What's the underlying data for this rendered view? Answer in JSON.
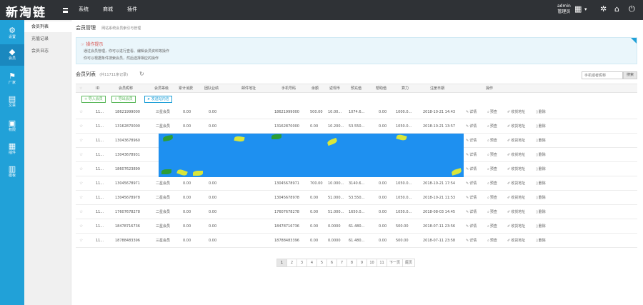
{
  "app": {
    "logo": "新淘链"
  },
  "topnav": [
    "系统",
    "商城",
    "插件"
  ],
  "admin": {
    "name": "admin",
    "role": "管理员"
  },
  "leftnav": [
    {
      "label": "设置",
      "icon": "gear-icon",
      "glyph": "⚙"
    },
    {
      "label": "会员",
      "icon": "diamond-icon",
      "glyph": "◆"
    },
    {
      "label": "厂家",
      "icon": "flag-icon",
      "glyph": "⚑"
    },
    {
      "label": "文章",
      "icon": "document-icon",
      "glyph": "▤"
    },
    {
      "label": "权限",
      "icon": "lock-icon",
      "glyph": "▣"
    },
    {
      "label": "插件",
      "icon": "plugin-icon",
      "glyph": "▦"
    },
    {
      "label": "模板",
      "icon": "template-icon",
      "glyph": "▥"
    }
  ],
  "subnav": [
    "会员列表",
    "充值记录",
    "会员日志"
  ],
  "page": {
    "title": "会员管理",
    "desc": "网站系统会员索引与管理",
    "tip_title": "操作提示",
    "tips": [
      "通过会员管理，你可以进行查看、编辑会员资料等操作",
      "你可以根据条件搜索会员，然后选择相应的操作"
    ],
    "list_title": "会员列表",
    "list_count": "(共11711条记录)",
    "search_placeholder": "手机或者昵称",
    "search_btn": "搜索"
  },
  "table": {
    "headers": [
      "ID",
      "会员昵称",
      "会员等级",
      "累计消费",
      "团队业绩",
      "邮件地址",
      "手机号码",
      "余额",
      "返现币",
      "预充值",
      "帮助值",
      "算力",
      "注册日期",
      "操作"
    ],
    "actions": [
      "导入会员",
      "导出会员",
      "发送站内信"
    ],
    "op_labels": [
      "详情",
      "预查",
      "收货地址",
      "删除"
    ],
    "rows": [
      {
        "id": "11...",
        "nick": "18621999000",
        "level": "三星会员",
        "consume": "0.00",
        "team": "0.00",
        "email": "",
        "phone": "18621999000",
        "balance": "500.00",
        "rebate": "10.00...",
        "precharge": "1074.6...",
        "help": "0.00",
        "power": "1000.0...",
        "date": "2018-10-21 14:43"
      },
      {
        "id": "11...",
        "nick": "13162870000",
        "level": "二星会员",
        "consume": "0.00",
        "team": "0.00",
        "email": "",
        "phone": "13162870000",
        "balance": "0.00",
        "rebate": "10.200...",
        "precharge": "53.550...",
        "help": "0.00",
        "power": "1050.0...",
        "date": "2018-10-21 13:57"
      },
      {
        "id": "11...",
        "nick": "13043678960",
        "level": "",
        "consume": "",
        "team": "",
        "email": "",
        "phone": "",
        "balance": "",
        "rebate": "",
        "precharge": "",
        "help": "",
        "power": "",
        "date": ""
      },
      {
        "id": "11...",
        "nick": "13043678931",
        "level": "",
        "consume": "",
        "team": "",
        "email": "",
        "phone": "",
        "balance": "",
        "rebate": "",
        "precharge": "",
        "help": "",
        "power": "",
        "date": ""
      },
      {
        "id": "11...",
        "nick": "18607623899",
        "level": "",
        "consume": "",
        "team": "",
        "email": "",
        "phone": "",
        "balance": "",
        "rebate": "",
        "precharge": "",
        "help": "",
        "power": "",
        "date": ""
      },
      {
        "id": "11...",
        "nick": "13045678971",
        "level": "二星会员",
        "consume": "0.00",
        "team": "0.00",
        "email": "",
        "phone": "13045678971",
        "balance": "700.00",
        "rebate": "10.000...",
        "precharge": "3140.6...",
        "help": "0.00",
        "power": "1050.0...",
        "date": "2018-10-21 17:54"
      },
      {
        "id": "11...",
        "nick": "13045678978",
        "level": "二星会员",
        "consume": "0.00",
        "team": "0.00",
        "email": "",
        "phone": "13045678978",
        "balance": "0.00",
        "rebate": "51.000...",
        "precharge": "53.550...",
        "help": "0.00",
        "power": "1050.0...",
        "date": "2018-10-21 11:53"
      },
      {
        "id": "11...",
        "nick": "17607678278",
        "level": "二星会员",
        "consume": "0.00",
        "team": "0.00",
        "email": "",
        "phone": "17607678278",
        "balance": "0.00",
        "rebate": "51.000...",
        "precharge": "1650.0...",
        "help": "0.00",
        "power": "1050.0...",
        "date": "2018-08-03 14:45"
      },
      {
        "id": "11...",
        "nick": "18478716736",
        "level": "三星会员",
        "consume": "0.00",
        "team": "0.00",
        "email": "",
        "phone": "18478716736",
        "balance": "0.00",
        "rebate": "0.0000",
        "precharge": "61.480...",
        "help": "0.00",
        "power": "500.00",
        "date": "2018-07-11 23:56"
      },
      {
        "id": "11...",
        "nick": "18788483396",
        "level": "三星会员",
        "consume": "0.00",
        "team": "0.00",
        "email": "",
        "phone": "18788483396",
        "balance": "0.00",
        "rebate": "0.0000",
        "precharge": "61.480...",
        "help": "0.00",
        "power": "500.00",
        "date": "2018-07-11 23:58"
      }
    ]
  },
  "pagination": [
    "1",
    "2",
    "3",
    "4",
    "5",
    "6",
    "7",
    "8",
    "9",
    "10",
    "11",
    "下一页",
    "尾页"
  ]
}
